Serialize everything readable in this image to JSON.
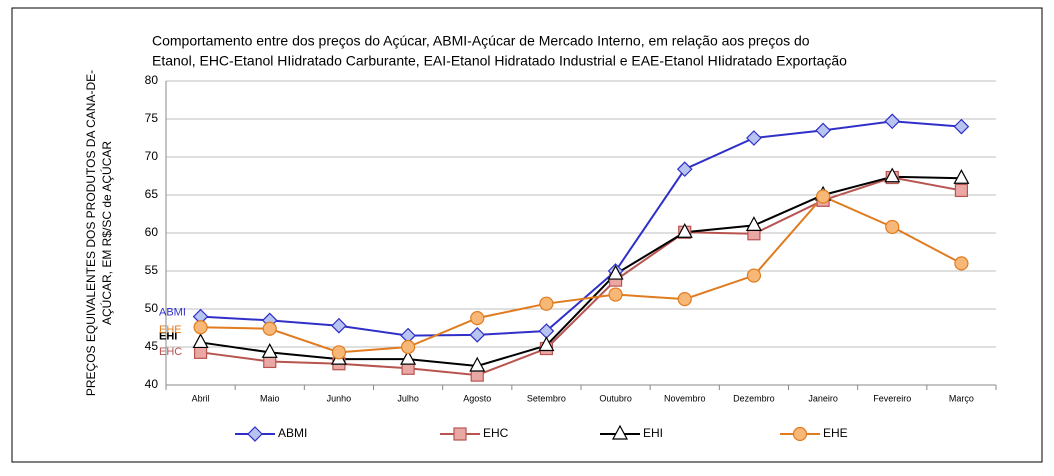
{
  "chart_data": {
    "type": "line",
    "title": [
      "Comportamento entre dos preços do Açúcar, ABMI-Açúcar de Mercado Interno, em relação aos preços do",
      "Etanol, EHC-Etanol HIidratado Carburante, EAI-Etanol Hidratado Industrial e EAE-Etanol HIidratado Exportação"
    ],
    "y_label": [
      "PREÇOS EQUIVALENTES DOS PRODUTOS DA CANA-DE-",
      "AÇÚCAR, EM R$/SC de AÇÚCAR"
    ],
    "categories": [
      "Abril",
      "Maio",
      "Junho",
      "Julho",
      "Agosto",
      "Setembro",
      "Outubro",
      "Novembro",
      "Dezembro",
      "Janeiro",
      "Fevereiro",
      "Março"
    ],
    "series": [
      {
        "name": "ABMI",
        "color": "#3030c8",
        "marker": "diamond",
        "marker_fill": "#b8c4f0",
        "values": [
          49,
          48.5,
          47.8,
          46.5,
          46.6,
          47.1,
          55,
          68.4,
          72.5,
          73.5,
          74.7,
          74
        ]
      },
      {
        "name": "EHC",
        "color": "#b85450",
        "marker": "square",
        "marker_fill": "#eaa8a4",
        "values": [
          44.3,
          43.1,
          42.8,
          42.2,
          41.3,
          44.8,
          53.8,
          60.1,
          59.9,
          64.3,
          67.3,
          65.6
        ]
      },
      {
        "name": "EHI",
        "color": "#000000",
        "marker": "triangle",
        "marker_fill": "#ffffff",
        "values": [
          45.6,
          44.3,
          43.4,
          43.4,
          42.5,
          45.2,
          54.6,
          60.1,
          61,
          65,
          67.4,
          67.2
        ]
      },
      {
        "name": "EHE",
        "color": "#e07b20",
        "marker": "circle",
        "marker_fill": "#f7b877",
        "values": [
          47.6,
          47.4,
          44.3,
          45,
          48.8,
          50.7,
          51.9,
          51.3,
          54.4,
          64.8,
          60.8,
          56
        ]
      }
    ],
    "ylim": [
      40,
      80
    ],
    "yticks": [
      40,
      45,
      50,
      55,
      60,
      65,
      70,
      75,
      80
    ],
    "grid": true
  }
}
